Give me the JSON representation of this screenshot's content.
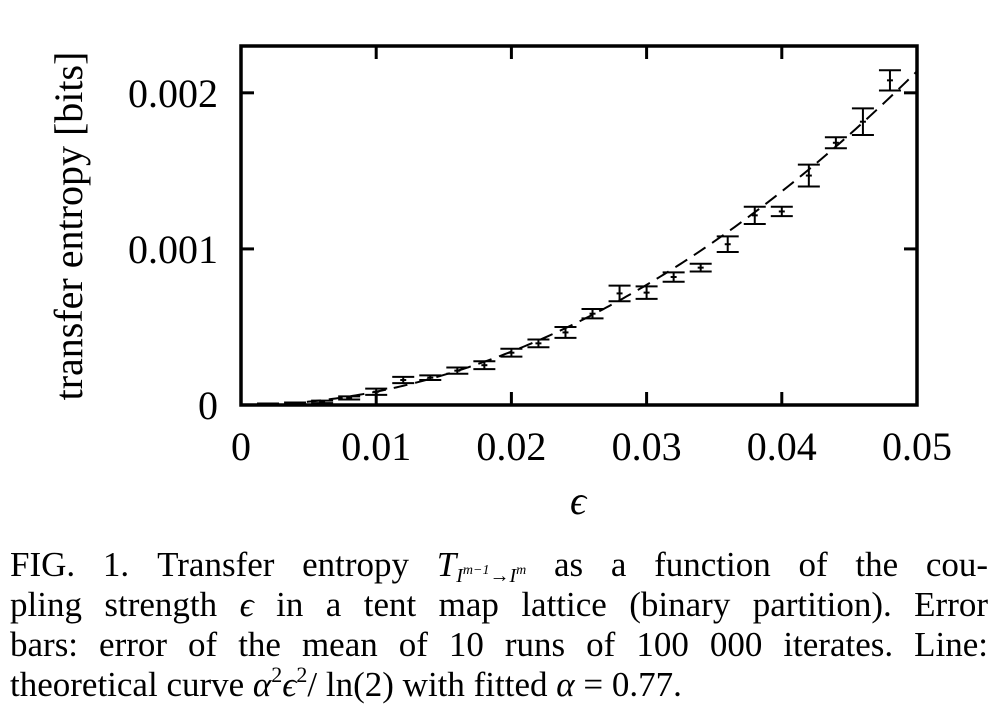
{
  "chart_data": {
    "type": "scatter",
    "xlabel": "ϵ",
    "ylabel": "transfer entropy [bits]",
    "xlim": [
      0,
      0.05
    ],
    "ylim": [
      0,
      0.0023
    ],
    "xticks": [
      0,
      0.01,
      0.02,
      0.03,
      0.04,
      0.05
    ],
    "xtick_labels": [
      "0",
      "0.01",
      "0.02",
      "0.03",
      "0.04",
      "0.05"
    ],
    "yticks": [
      0,
      0.001,
      0.002
    ],
    "ytick_labels": [
      "0",
      "0.001",
      "0.002"
    ],
    "grid": false,
    "series": [
      {
        "style": "points with error bars",
        "x": [
          0.002,
          0.004,
          0.006,
          0.008,
          0.01,
          0.012,
          0.014,
          0.016,
          0.018,
          0.02,
          0.022,
          0.024,
          0.026,
          0.028,
          0.03,
          0.032,
          0.034,
          0.036,
          0.038,
          0.04,
          0.042,
          0.044,
          0.046,
          0.048
        ],
        "y": [
          5e-06,
          1e-05,
          2e-05,
          4.5e-05,
          8.5e-05,
          0.00016,
          0.000175,
          0.00022,
          0.000255,
          0.000335,
          0.000395,
          0.000465,
          0.000585,
          0.000715,
          0.00072,
          0.00082,
          0.00088,
          0.00103,
          0.001215,
          0.00124,
          0.00147,
          0.00168,
          0.001815,
          0.00208
        ],
        "err": [
          5e-06,
          6e-06,
          8e-06,
          1e-05,
          2e-05,
          2e-05,
          1.5e-05,
          2e-05,
          2.5e-05,
          2.5e-05,
          2.5e-05,
          3.5e-05,
          3e-05,
          5e-05,
          4e-05,
          3e-05,
          2.5e-05,
          5e-05,
          5.5e-05,
          3e-05,
          7e-05,
          3.5e-05,
          8.5e-05,
          6.5e-05
        ]
      },
      {
        "style": "dashed line",
        "function": "alpha^2 * eps^2 / ln(2)",
        "alpha": 0.77
      }
    ]
  },
  "caption": {
    "fig_label": "FIG. 1.",
    "line1_a": "Transfer entropy",
    "T": "T",
    "T_sub_a": "I",
    "T_sub_sup1": "m−1",
    "T_sub_arrow": "→I",
    "T_sub_sup2": "m",
    "line1_b": "as a function of the cou-",
    "line2_a": "pling strength",
    "line2_eps": "ϵ",
    "line2_b": "in a tent map lattice (binary partition).  Error",
    "line3": "bars:  error of the mean of 10 runs of 100 000 iterates.  Line:",
    "line4_a": "theoretical curve",
    "formula_alpha": "α",
    "formula_sq1": "2",
    "formula_eps": "ϵ",
    "formula_sq2": "2",
    "formula_rest": "/ ln(2) with fitted",
    "fit_alpha": "α",
    "fit_value": "= 0.77."
  }
}
